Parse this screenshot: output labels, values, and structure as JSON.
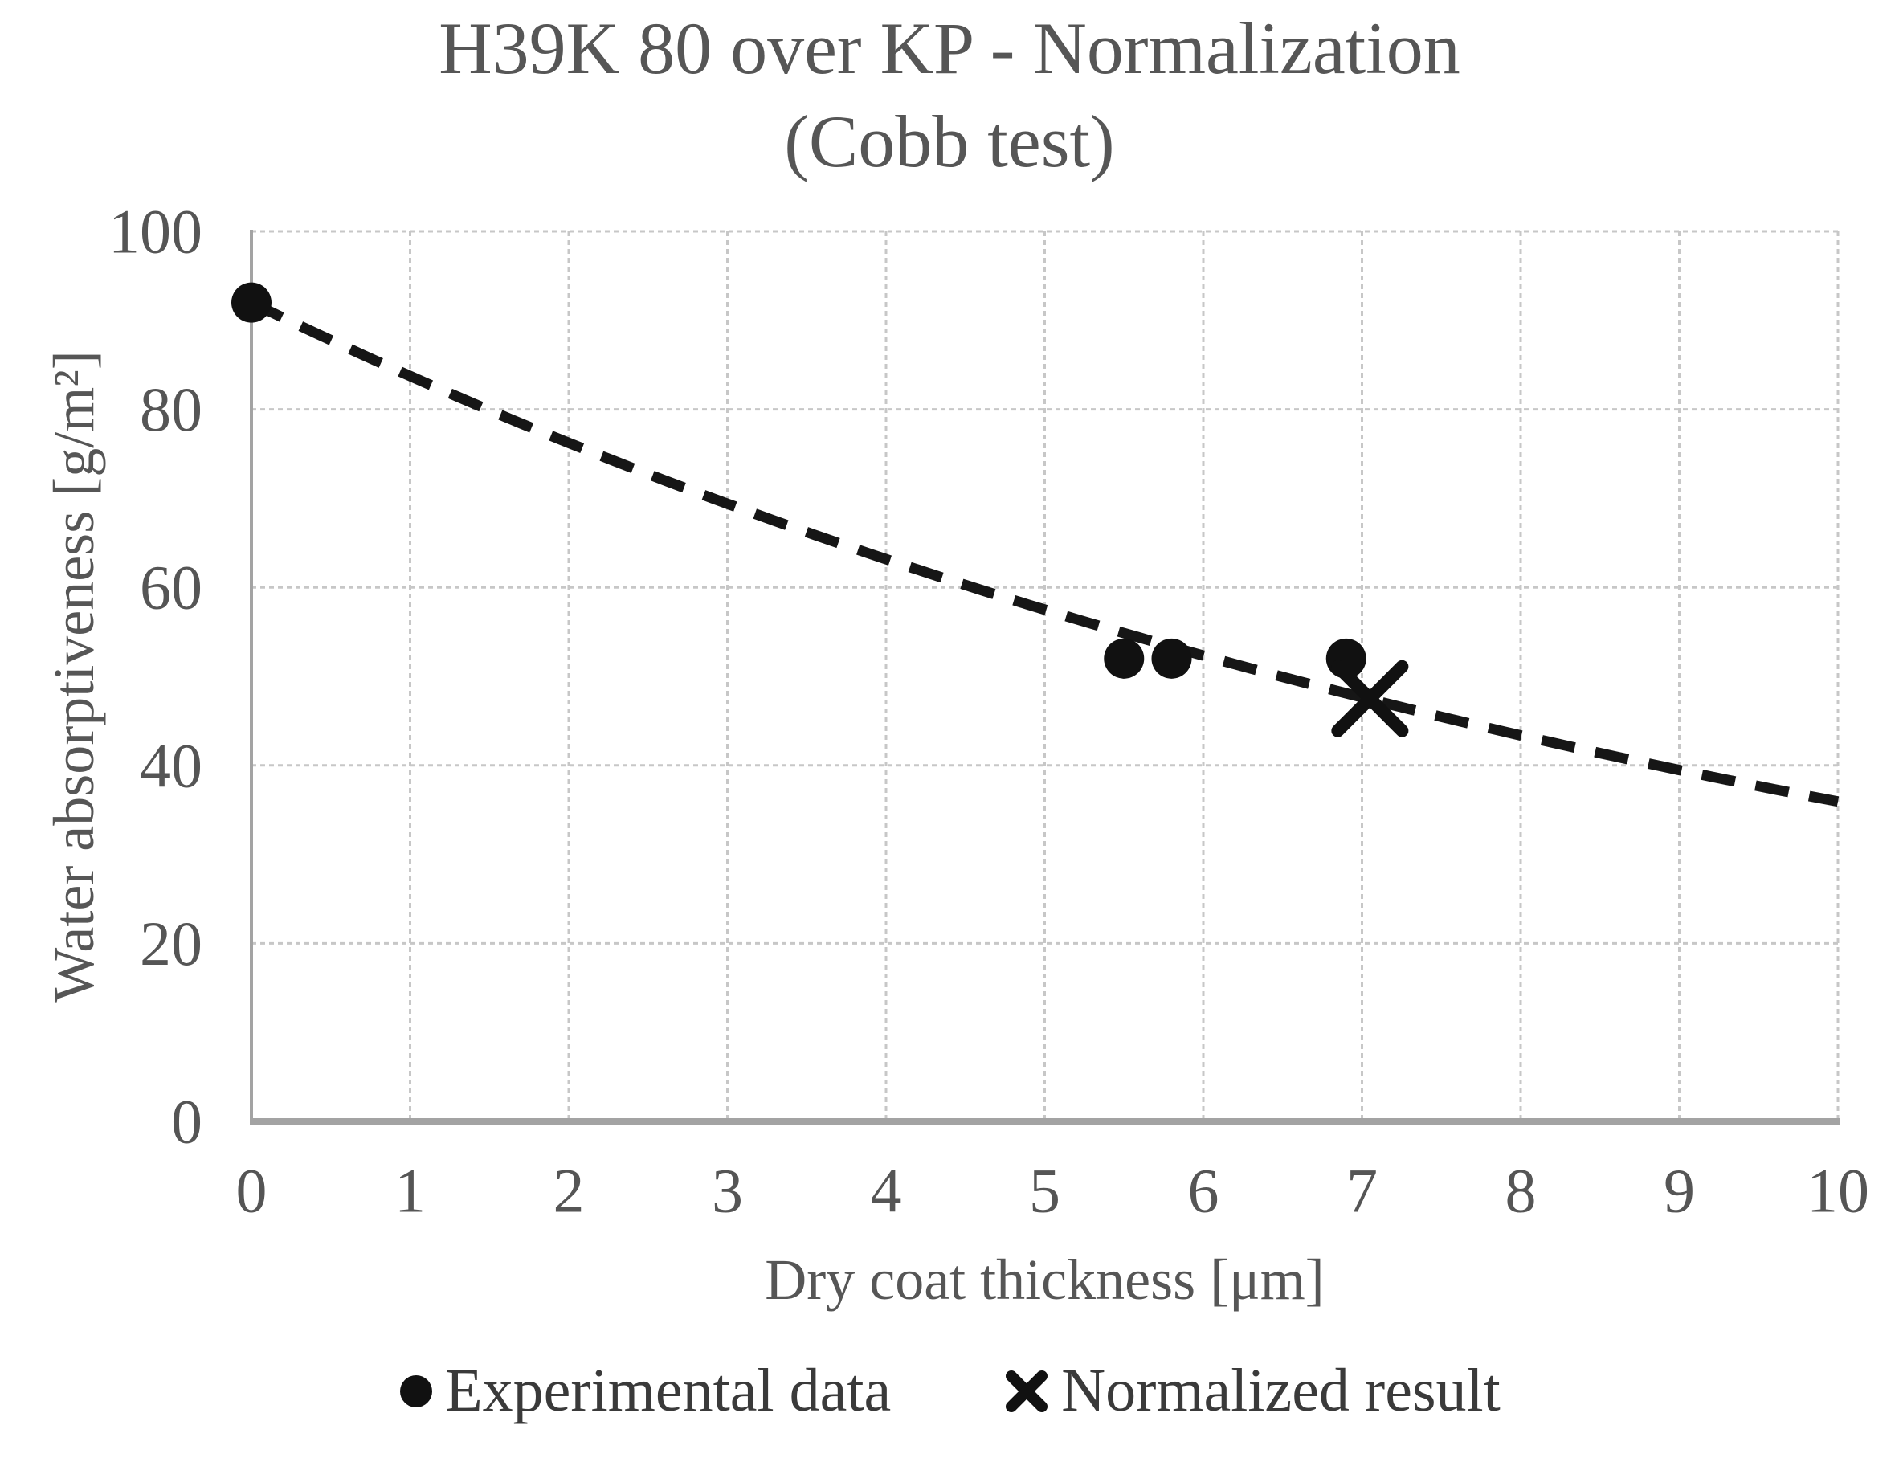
{
  "chart_data": {
    "type": "scatter",
    "title": "H39K 80 over KP - Normalization",
    "subtitle": "(Cobb test)",
    "xlabel": "Dry coat thickness [μm]",
    "ylabel": "Water absorptiveness [g/m²]",
    "xlim": [
      0,
      10
    ],
    "ylim": [
      0,
      100
    ],
    "x_ticks": [
      0,
      1,
      2,
      3,
      4,
      5,
      6,
      7,
      8,
      9,
      10
    ],
    "y_ticks": [
      0,
      20,
      40,
      60,
      80,
      100
    ],
    "grid": "both",
    "legend_position": "bottom",
    "series": [
      {
        "name": "Experimental data",
        "marker": "circle",
        "points": [
          [
            0,
            92
          ],
          [
            5.5,
            52
          ],
          [
            5.8,
            52
          ],
          [
            6.9,
            52
          ]
        ]
      },
      {
        "name": "Normalized result",
        "marker": "x-cross",
        "points": [
          [
            7.05,
            47.5
          ]
        ]
      }
    ],
    "trend_line": {
      "style": "dashed",
      "model": "exponential",
      "formula": "y = 92·exp(-0.094·x)",
      "a": 92,
      "k": 0.094,
      "x_start": 0,
      "x_end": 10,
      "y_end": 36
    },
    "colors": {
      "background": "#ffffff",
      "text": "#555555",
      "grid": "#c7c7c7",
      "axis": "#a3a3a3",
      "marker": "#111111",
      "trend": "#161616"
    }
  }
}
